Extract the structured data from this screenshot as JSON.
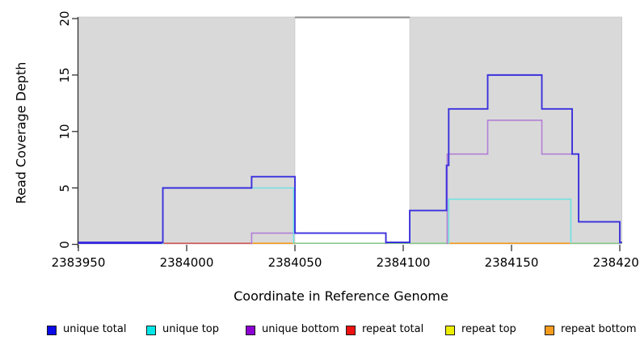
{
  "chart_data": {
    "type": "line",
    "step": true,
    "title": "",
    "x_axis": {
      "label": "Coordinate in Reference Genome",
      "ticks": [
        2383950,
        2384000,
        2384050,
        2384100,
        2384150,
        2384200
      ],
      "range": [
        2383950,
        2384201
      ]
    },
    "y_axis": {
      "label": "Read Coverage Depth",
      "ticks": [
        0,
        5,
        10,
        15,
        20
      ],
      "range": [
        0,
        20
      ]
    },
    "shaded_regions": [
      {
        "from": 2383950,
        "to": 2384050,
        "color": "#d9d9d9"
      },
      {
        "from": 2384103,
        "to": 2384201,
        "color": "#d9d9d9"
      }
    ],
    "gap_region": {
      "from": 2384050,
      "to": 2384103,
      "color": "#ffffff",
      "top_border": "#8a8a8a"
    },
    "series": [
      {
        "name": "unique total",
        "color": "#3a30dd",
        "draw": "full",
        "runs": [
          {
            "from": 2383950,
            "to": 2383989,
            "depth": 0
          },
          {
            "from": 2383989,
            "to": 2384030,
            "depth": 5
          },
          {
            "from": 2384030,
            "to": 2384050,
            "depth": 6
          },
          {
            "from": 2384050,
            "to": 2384092,
            "depth": 1
          },
          {
            "from": 2384092,
            "to": 2384103,
            "depth": 0
          },
          {
            "from": 2384103,
            "to": 2384120,
            "depth": 3
          },
          {
            "from": 2384120,
            "to": 2384121,
            "depth": 7
          },
          {
            "from": 2384121,
            "to": 2384139,
            "depth": 12
          },
          {
            "from": 2384139,
            "to": 2384164,
            "depth": 15
          },
          {
            "from": 2384164,
            "to": 2384178,
            "depth": 12
          },
          {
            "from": 2384178,
            "to": 2384181,
            "depth": 8
          },
          {
            "from": 2384181,
            "to": 2384200,
            "depth": 2
          },
          {
            "from": 2384200,
            "to": 2384201,
            "depth": 0
          }
        ]
      },
      {
        "name": "unique top",
        "color": "#70e2e2",
        "draw": "humps",
        "humps": [
          [
            {
              "from": 2383989,
              "to": 2384049.4,
              "depth": 5
            }
          ],
          [
            {
              "from": 2384121,
              "to": 2384177.4,
              "depth": 4
            }
          ]
        ]
      },
      {
        "name": "unique bottom",
        "color": "#b27fd8",
        "draw": "humps",
        "humps": [
          [
            {
              "from": 2384030,
              "to": 2384092,
              "depth": 1
            }
          ],
          [
            {
              "from": 2384120.3,
              "to": 2384139,
              "depth": 8
            },
            {
              "from": 2384139,
              "to": 2384164,
              "depth": 11
            },
            {
              "from": 2384164,
              "to": 2384181,
              "depth": 8
            },
            {
              "from": 2384181,
              "to": 2384200,
              "depth": 2
            }
          ]
        ]
      },
      {
        "name": "repeat total",
        "color": "#d25a5a",
        "draw": "baseline-only",
        "runs": [
          {
            "from": 2383950,
            "to": 2384201,
            "depth": 0
          }
        ]
      },
      {
        "name": "repeat top",
        "color": "#eded1f",
        "draw": "baseline-only",
        "runs": [
          {
            "from": 2383950,
            "to": 2384201,
            "depth": 0
          }
        ]
      },
      {
        "name": "repeat bottom",
        "color": "#f59b1e",
        "draw": "baseline-only",
        "runs": [
          {
            "from": 2383950,
            "to": 2384201,
            "depth": 0
          }
        ]
      }
    ],
    "baseline_segments": [
      {
        "from": 2383950,
        "to": 2383989,
        "color": "#3a30dd",
        "series": "unique total"
      },
      {
        "from": 2383989,
        "to": 2384030,
        "color": "#d25a5a",
        "series": "repeat total"
      },
      {
        "from": 2384030,
        "to": 2384050,
        "color": "#f59b1e",
        "series": "repeat bottom"
      },
      {
        "from": 2384050,
        "to": 2384120,
        "color": "#8cc98f",
        "series": "overlapping zero lines"
      },
      {
        "from": 2384120,
        "to": 2384178,
        "color": "#f59b1e",
        "series": "repeat bottom"
      },
      {
        "from": 2384178,
        "to": 2384201,
        "color": "#8cc98f",
        "series": "overlapping zero lines"
      }
    ]
  },
  "titles": {
    "x": "Coordinate in Reference Genome",
    "y": "Read Coverage Depth"
  },
  "legend": {
    "items": [
      {
        "label": "unique total",
        "color": "#0b0be8"
      },
      {
        "label": "unique top",
        "color": "#00e6e6"
      },
      {
        "label": "unique bottom",
        "color": "#8d00d3"
      },
      {
        "label": "repeat total",
        "color": "#ee1111"
      },
      {
        "label": "repeat top",
        "color": "#eded00"
      },
      {
        "label": "repeat bottom",
        "color": "#f59b1e"
      }
    ]
  }
}
